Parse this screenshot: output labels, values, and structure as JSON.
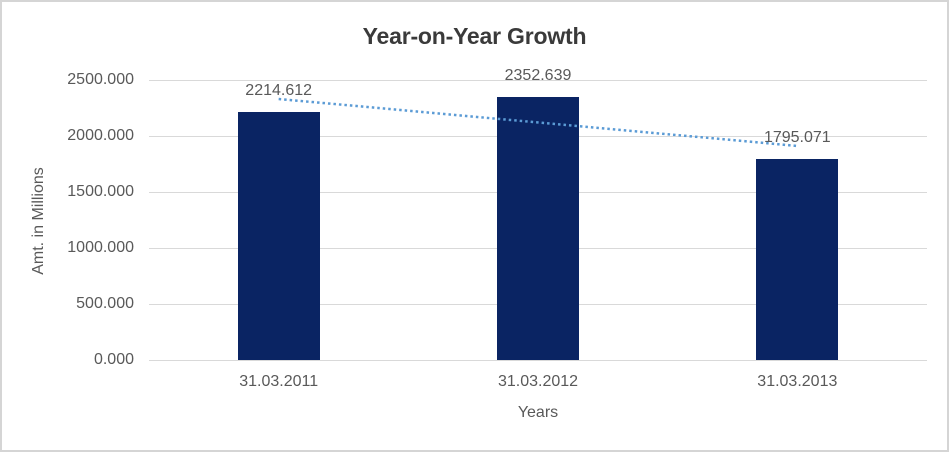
{
  "chart_data": {
    "type": "bar",
    "title": "Year-on-Year Growth",
    "xlabel": "Years",
    "ylabel": "Amt. in Millions",
    "categories": [
      "31.03.2011",
      "31.03.2012",
      "31.03.2013"
    ],
    "values": [
      2214.612,
      2352.639,
      1795.071
    ],
    "data_labels": [
      "2214.612",
      "2352.639",
      "1795.071"
    ],
    "yticks": [
      "2500.000",
      "2000.000",
      "1500.000",
      "1000.000",
      "500.000",
      "0.000"
    ],
    "ylim": [
      0,
      2500
    ],
    "grid": "horizontal",
    "legend": "none",
    "trendline": {
      "type": "linear",
      "style": "dotted"
    },
    "colors": {
      "bar": "#0a2463",
      "trendline": "#5b9bd5",
      "gridline": "#d9d9d9",
      "axis_text": "#595959",
      "title_text": "#3a3a3a",
      "frame_border": "#d5d5d5",
      "background": "#ffffff"
    }
  }
}
